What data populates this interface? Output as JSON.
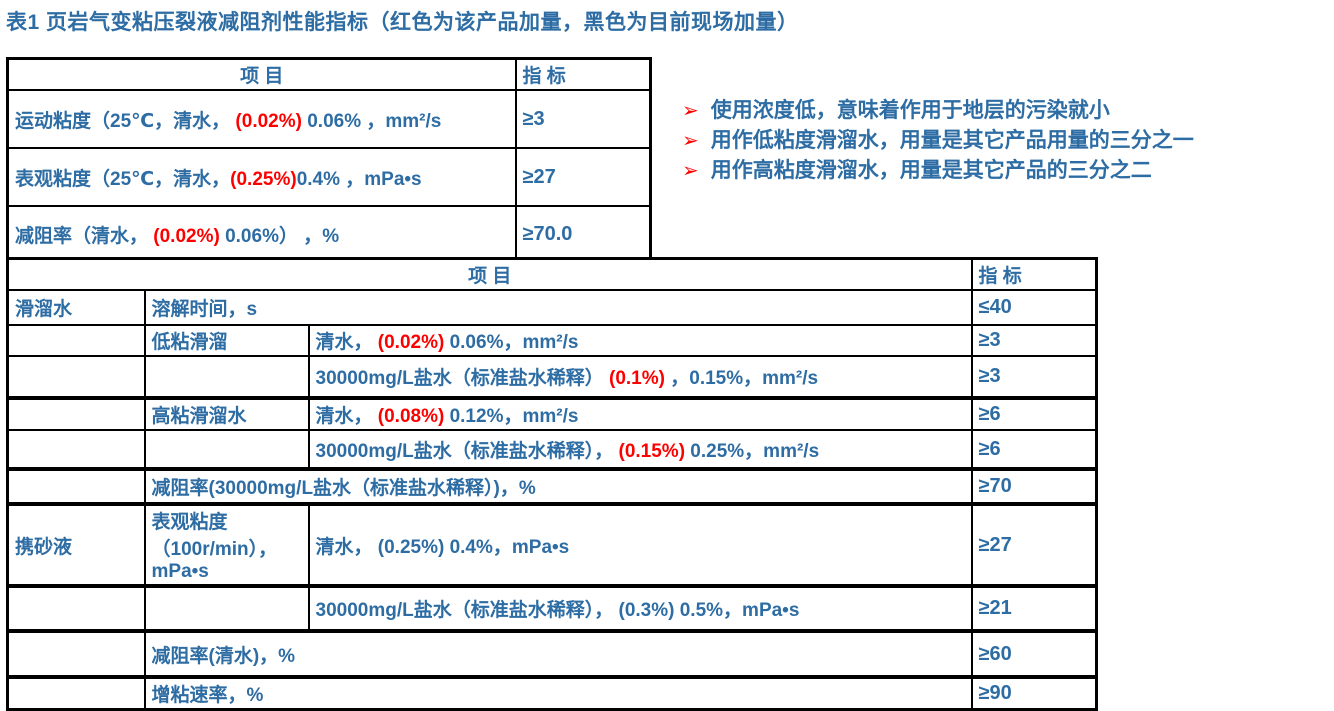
{
  "title": "表1 页岩气变粘压裂液减阻剂性能指标（红色为该产品加量，黑色为目前现场加量）",
  "colors": {
    "text_blue": "#2E6DA4",
    "highlight_red": "#FF0000",
    "border_black": "#000000",
    "background": "#FFFFFF"
  },
  "bullets": {
    "marker_icon": "arrow-bullet",
    "items": [
      "使用浓度低，意味着作用于地层的污染就小",
      "用作低粘度滑溜水，用量是其它产品用量的三分之一",
      "用作高粘度滑溜水，用量是其它产品的三分之二"
    ]
  },
  "table1": {
    "headers": {
      "item": "项 目",
      "indicator": "指 标"
    },
    "rows": [
      {
        "item": [
          {
            "text": "运动粘度（25℃，清水， "
          },
          {
            "text": "(0.02%)",
            "red": true
          },
          {
            "text": " 0.06% ，mm²/s"
          }
        ],
        "indicator": "≥3"
      },
      {
        "item": [
          {
            "text": "表观粘度（25℃，清水，"
          },
          {
            "text": "(0.25%)",
            "red": true
          },
          {
            "text": "0.4% ，mPa•s"
          }
        ],
        "indicator": "≥27"
      },
      {
        "item": [
          {
            "text": "减阻率（清水， "
          },
          {
            "text": "(0.02%)",
            "red": true
          },
          {
            "text": " 0.06%） ，%"
          }
        ],
        "indicator": "≥70.0"
      }
    ]
  },
  "table2": {
    "headers": {
      "item": "项 目",
      "indicator": "指 标"
    },
    "rows": [
      {
        "cells": [
          {
            "span": 1,
            "parts": [
              {
                "text": "滑溜水"
              }
            ]
          },
          {
            "span": 2,
            "parts": [
              {
                "text": "溶解时间，s"
              }
            ]
          }
        ],
        "indicator": "≤40"
      },
      {
        "cells": [
          {
            "span": 1,
            "parts": []
          },
          {
            "span": 1,
            "parts": [
              {
                "text": "低粘滑溜"
              }
            ]
          },
          {
            "span": 1,
            "parts": [
              {
                "text": "清水， "
              },
              {
                "text": "(0.02%)",
                "red": true
              },
              {
                "text": " 0.06%，mm²/s"
              }
            ]
          }
        ],
        "indicator": "≥3"
      },
      {
        "cells": [
          {
            "span": 1,
            "parts": []
          },
          {
            "span": 1,
            "parts": []
          },
          {
            "span": 1,
            "parts": [
              {
                "text": "30000mg/L盐水（标准盐水稀释） "
              },
              {
                "text": "(0.1%)",
                "red": true
              },
              {
                "text": " ，0.15%，mm²/s"
              }
            ]
          }
        ],
        "indicator": "≥3"
      },
      {
        "cells": [
          {
            "span": 1,
            "parts": []
          },
          {
            "span": 1,
            "parts": [
              {
                "text": "高粘滑溜水"
              }
            ]
          },
          {
            "span": 1,
            "parts": [
              {
                "text": "清水， "
              },
              {
                "text": "(0.08%)",
                "red": true
              },
              {
                "text": " 0.12%，mm²/s"
              }
            ]
          }
        ],
        "indicator": "≥6"
      },
      {
        "cells": [
          {
            "span": 1,
            "parts": []
          },
          {
            "span": 1,
            "parts": []
          },
          {
            "span": 1,
            "parts": [
              {
                "text": "30000mg/L盐水（标准盐水稀释）， "
              },
              {
                "text": "(0.15%)",
                "red": true
              },
              {
                "text": " 0.25%，mm²/s"
              }
            ]
          }
        ],
        "indicator": "≥6"
      },
      {
        "cells": [
          {
            "span": 1,
            "parts": []
          },
          {
            "span": 2,
            "parts": [
              {
                "text": "减阻率(30000mg/L盐水（标准盐水稀释）)，%"
              }
            ]
          }
        ],
        "indicator": "≥70"
      },
      {
        "cells": [
          {
            "span": 1,
            "parts": [
              {
                "text": "携砂液"
              }
            ]
          },
          {
            "span": 1,
            "parts": [
              {
                "text": "表观粘度\n（100r/min），\nmPa•s"
              }
            ]
          },
          {
            "span": 1,
            "parts": [
              {
                "text": "清水， (0.25%) 0.4%，mPa•s"
              }
            ]
          }
        ],
        "indicator": "≥27"
      },
      {
        "cells": [
          {
            "span": 1,
            "parts": []
          },
          {
            "span": 1,
            "parts": []
          },
          {
            "span": 1,
            "parts": [
              {
                "text": "30000mg/L盐水（标准盐水稀释）， (0.3%) 0.5%，mPa•s"
              }
            ]
          }
        ],
        "indicator": "≥21"
      },
      {
        "cells": [
          {
            "span": 1,
            "parts": []
          },
          {
            "span": 2,
            "parts": [
              {
                "text": "减阻率(清水)，%"
              }
            ]
          }
        ],
        "indicator": "≥60"
      },
      {
        "cells": [
          {
            "span": 1,
            "parts": []
          },
          {
            "span": 2,
            "parts": [
              {
                "text": "增粘速率，%"
              }
            ]
          }
        ],
        "indicator": "≥90"
      }
    ]
  }
}
